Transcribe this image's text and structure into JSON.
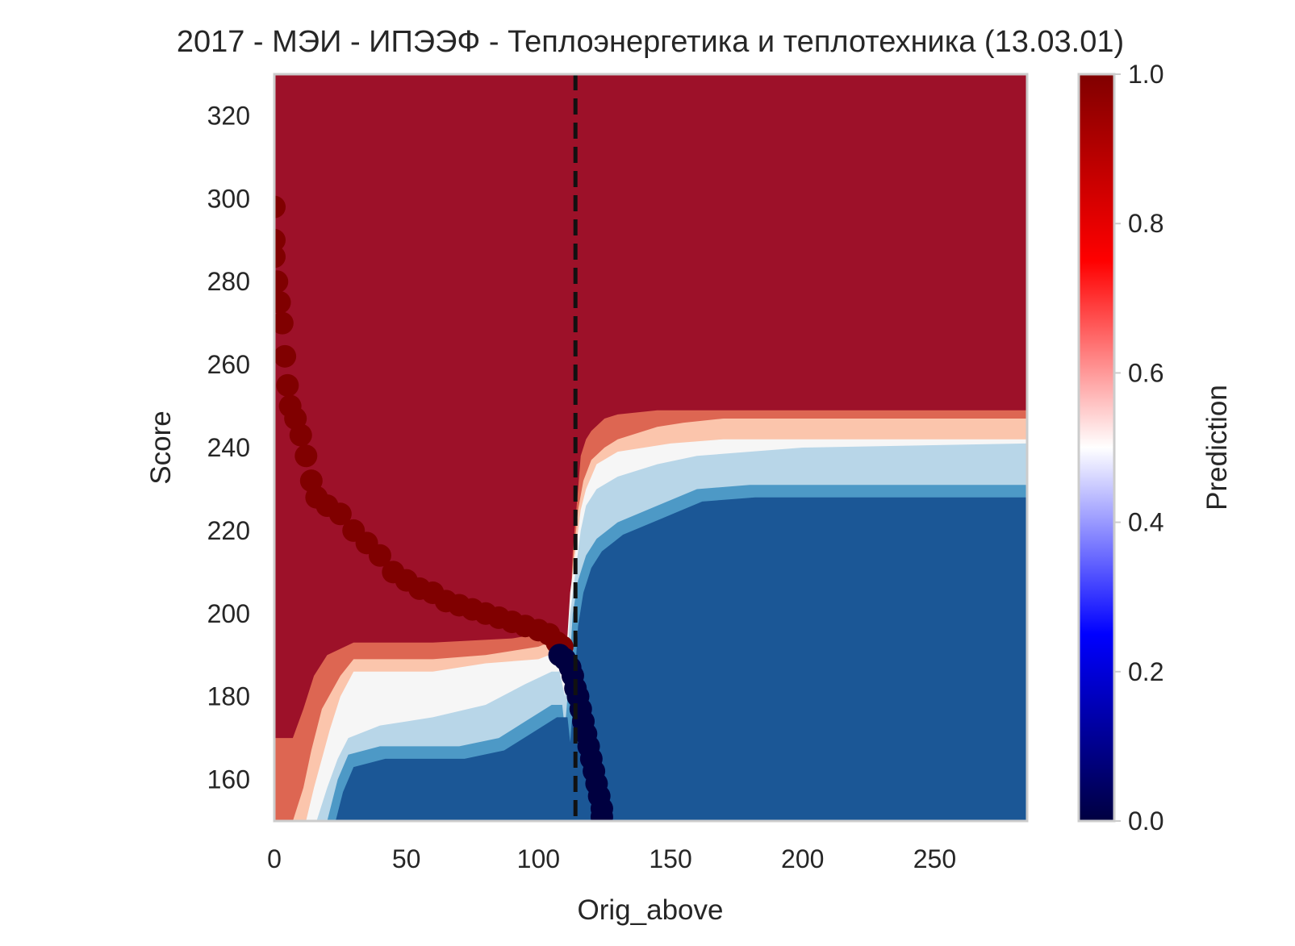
{
  "chart_data": {
    "type": "heatmap",
    "title": "2017 - МЭИ - ИПЭЭФ - Теплоэнергетика и теплотехника (13.03.01)",
    "xlabel": "Orig_above",
    "ylabel": "Score",
    "xlim": [
      0,
      285
    ],
    "ylim": [
      150,
      330
    ],
    "x_ticks": [
      0,
      50,
      100,
      150,
      200,
      250
    ],
    "y_ticks": [
      160,
      180,
      200,
      220,
      240,
      260,
      280,
      300,
      320
    ],
    "grid": false,
    "colorbar": {
      "label": "Prediction",
      "range": [
        0,
        1
      ],
      "ticks": [
        "0.0",
        "0.2",
        "0.4",
        "0.6",
        "0.8",
        "1.0"
      ],
      "colormap": "seismic",
      "position": "right"
    },
    "threshold_line": {
      "axis": "x",
      "value": 114,
      "style": "dashed",
      "color": "#111111"
    },
    "colors": {
      "level_0_0": "#1b5796",
      "level_0_2": "#4d99c6",
      "level_0_4": "#b8d6e8",
      "level_0_5": "#f6f6f6",
      "level_0_6": "#fbc5ac",
      "level_0_8": "#dd6652",
      "level_1_0": "#9d1129",
      "admitted_points": "#800000",
      "rejected_points": "#000040"
    },
    "decision_boundary": {
      "series": [
        {
          "level": "0.8-1.0",
          "points": [
            [
              0,
              170
            ],
            [
              7,
              170
            ],
            [
              11,
              177
            ],
            [
              15,
              185
            ],
            [
              20,
              190
            ],
            [
              30,
              193
            ],
            [
              60,
              193
            ],
            [
              90,
              194
            ],
            [
              108,
              196
            ],
            [
              110,
              190
            ],
            [
              112,
              200
            ],
            [
              113,
              215
            ],
            [
              115,
              230
            ],
            [
              116,
              238
            ],
            [
              118,
              242
            ],
            [
              120,
              244
            ],
            [
              125,
              247
            ],
            [
              130,
              248
            ],
            [
              145,
              249
            ],
            [
              155,
              249
            ],
            [
              170,
              249
            ],
            [
              190,
              249
            ],
            [
              285,
              249
            ]
          ]
        },
        {
          "level": "0.6-0.8",
          "points": [
            [
              7,
              150
            ],
            [
              11,
              158
            ],
            [
              14,
              167
            ],
            [
              18,
              177
            ],
            [
              25,
              185
            ],
            [
              30,
              189
            ],
            [
              60,
              189
            ],
            [
              80,
              190
            ],
            [
              100,
              192
            ],
            [
              108,
              194
            ],
            [
              110,
              188
            ],
            [
              112,
              200
            ],
            [
              113,
              212
            ],
            [
              115,
              225
            ],
            [
              117,
              232
            ],
            [
              120,
              237
            ],
            [
              125,
              240
            ],
            [
              130,
              242
            ],
            [
              145,
              245
            ],
            [
              155,
              246
            ],
            [
              170,
              247
            ],
            [
              190,
              247
            ],
            [
              285,
              247
            ]
          ]
        },
        {
          "level": "0.5-0.6",
          "points": [
            [
              12,
              150
            ],
            [
              15,
              158
            ],
            [
              18,
              165
            ],
            [
              21,
              172
            ],
            [
              25,
              180
            ],
            [
              30,
              186
            ],
            [
              60,
              186
            ],
            [
              80,
              188
            ],
            [
              100,
              189
            ],
            [
              108,
              191
            ],
            [
              110,
              185
            ],
            [
              111,
              195
            ],
            [
              112,
              205
            ],
            [
              114,
              215
            ],
            [
              116,
              225
            ],
            [
              118,
              230
            ],
            [
              122,
              236
            ],
            [
              130,
              239
            ],
            [
              150,
              241
            ],
            [
              170,
              242
            ],
            [
              200,
              242
            ],
            [
              285,
              242
            ]
          ]
        },
        {
          "level": "0.4-0.5",
          "points": [
            [
              16,
              150
            ],
            [
              20,
              158
            ],
            [
              24,
              165
            ],
            [
              28,
              170
            ],
            [
              40,
              173
            ],
            [
              60,
              175
            ],
            [
              80,
              178
            ],
            [
              95,
              183
            ],
            [
              105,
              186
            ],
            [
              108,
              186
            ],
            [
              110,
              180
            ],
            [
              111,
              190
            ],
            [
              112,
              200
            ],
            [
              114,
              210
            ],
            [
              116,
              220
            ],
            [
              118,
              226
            ],
            [
              122,
              230
            ],
            [
              130,
              233
            ],
            [
              145,
              236
            ],
            [
              160,
              238
            ],
            [
              200,
              240
            ],
            [
              285,
              241
            ]
          ]
        },
        {
          "level": "0.2-0.4",
          "points": [
            [
              20,
              150
            ],
            [
              24,
              160
            ],
            [
              28,
              166
            ],
            [
              40,
              168
            ],
            [
              70,
              168
            ],
            [
              85,
              170
            ],
            [
              95,
              174
            ],
            [
              105,
              178
            ],
            [
              109,
              178
            ],
            [
              110,
              172
            ],
            [
              111,
              180
            ],
            [
              112,
              190
            ],
            [
              113,
              200
            ],
            [
              115,
              208
            ],
            [
              118,
              214
            ],
            [
              122,
              218
            ],
            [
              130,
              222
            ],
            [
              145,
              226
            ],
            [
              160,
              230
            ],
            [
              180,
              231
            ],
            [
              285,
              231
            ]
          ]
        }
      ]
    },
    "admitted_points": [
      [
        0,
        298
      ],
      [
        0,
        290
      ],
      [
        0,
        286
      ],
      [
        1,
        280
      ],
      [
        2,
        275
      ],
      [
        3,
        270
      ],
      [
        4,
        262
      ],
      [
        5,
        255
      ],
      [
        6,
        250
      ],
      [
        8,
        247
      ],
      [
        10,
        243
      ],
      [
        12,
        238
      ],
      [
        14,
        232
      ],
      [
        16,
        228
      ],
      [
        20,
        226
      ],
      [
        25,
        224
      ],
      [
        30,
        220
      ],
      [
        35,
        217
      ],
      [
        40,
        214
      ],
      [
        45,
        210
      ],
      [
        50,
        208
      ],
      [
        55,
        206
      ],
      [
        60,
        205
      ],
      [
        65,
        203
      ],
      [
        70,
        202
      ],
      [
        75,
        201
      ],
      [
        80,
        200
      ],
      [
        85,
        199
      ],
      [
        90,
        198
      ],
      [
        95,
        197
      ],
      [
        100,
        196
      ],
      [
        104,
        195
      ],
      [
        107,
        193
      ],
      [
        109,
        192
      ]
    ],
    "rejected_points": [
      [
        108,
        190
      ],
      [
        110,
        189
      ],
      [
        112,
        187
      ],
      [
        113,
        185
      ],
      [
        114,
        182
      ],
      [
        115,
        180
      ],
      [
        116,
        177
      ],
      [
        117,
        174
      ],
      [
        118,
        171
      ],
      [
        119,
        168
      ],
      [
        120,
        165
      ],
      [
        121,
        162
      ],
      [
        122,
        159
      ],
      [
        123,
        156
      ],
      [
        124,
        153
      ],
      [
        124,
        151
      ]
    ]
  }
}
